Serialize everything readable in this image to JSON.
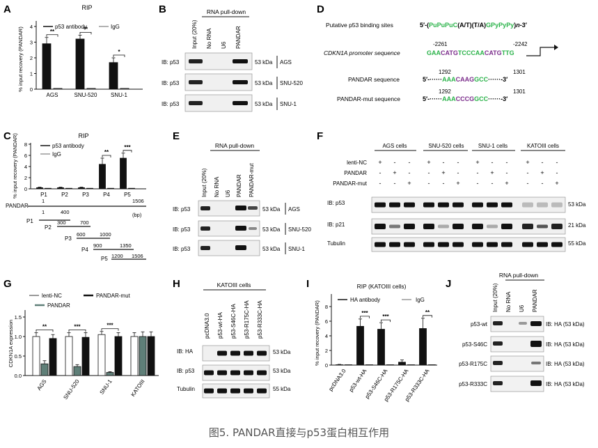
{
  "caption": "图5. PANDAR直接与p53蛋白相互作用",
  "colors": {
    "black": "#111111",
    "gray": "#999999",
    "teal": "#5f7f78",
    "white": "#ffffff",
    "green": "#2bb34a",
    "purple": "#7b2d8b"
  },
  "panelA": {
    "letter": "A",
    "title": "RIP",
    "legend": [
      "p53 antibody",
      "IgG"
    ],
    "ylabel": "% input recovery (PANDAR)",
    "ticks": [
      "0",
      "1",
      "2",
      "3",
      "4"
    ],
    "sig": [
      "**",
      "**",
      "*"
    ]
  },
  "panelB": {
    "letter": "B",
    "header": "RNA pull-down",
    "lanes": [
      "Input (20%)",
      "No RNA",
      "U6",
      "PANDAR"
    ],
    "rows": [
      {
        "label": "IB: p53",
        "kda": "53 kDa",
        "cell": "AGS"
      },
      {
        "label": "IB: p53",
        "kda": "53 kDa",
        "cell": "SNU-520"
      },
      {
        "label": "IB: p53",
        "kda": "53 kDa",
        "cell": "SNU-1"
      }
    ]
  },
  "panelC": {
    "letter": "C",
    "title": "RIP",
    "legend": [
      "p53 antibody",
      "IgG"
    ],
    "ylabel": "% input recovery (PANDAR)",
    "ticks": [
      "0",
      "2",
      "4",
      "6",
      "8"
    ],
    "sig": [
      "**",
      "***"
    ],
    "map_label": "PANDAR",
    "map_start": "1",
    "map_end": "1506",
    "unit": "(bp)",
    "fragments": [
      {
        "name": "P1",
        "s": "1",
        "e": "400"
      },
      {
        "name": "P2",
        "s": "300",
        "e": "700"
      },
      {
        "name": "P3",
        "s": "600",
        "e": "1000"
      },
      {
        "name": "P4",
        "s": "900",
        "e": "1350"
      },
      {
        "name": "P5",
        "s": "1200",
        "e": "1506"
      }
    ]
  },
  "panelD": {
    "letter": "D",
    "site_label": "Putative p53 binding sites",
    "promoter_label": "CDKN1A promoter sequence",
    "pandar_label": "PANDAR sequence",
    "mut_label": "PANDAR-mut sequence",
    "pos_promoter": [
      "-2261",
      "-2242"
    ],
    "pos_pandar": [
      "1292",
      "1301"
    ],
    "pos_mut": [
      "1292",
      "1301"
    ]
  },
  "panelE": {
    "letter": "E",
    "header": "RNA pull-down",
    "lanes": [
      "Input (20%)",
      "No RNA",
      "U6",
      "PANDAR",
      "PANDAR-mut"
    ],
    "rows": [
      {
        "label": "IB: p53",
        "kda": "53 kDa",
        "cell": "AGS"
      },
      {
        "label": "IB: p53",
        "kda": "53 kDa",
        "cell": "SNU-520"
      },
      {
        "label": "IB: p53",
        "kda": "53 kDa",
        "cell": "SNU-1"
      }
    ]
  },
  "panelF": {
    "letter": "F",
    "groups": [
      "AGS cells",
      "SNU-520 cells",
      "SNU-1 cells",
      "KATOIII cells"
    ],
    "conds": [
      "lenti-NC",
      "PANDAR",
      "PANDAR-mut"
    ],
    "rows": [
      {
        "label": "IB: p53",
        "kda": "53 kDa"
      },
      {
        "label": "IB: p21",
        "kda": "21 kDa"
      },
      {
        "label": "Tubulin",
        "kda": "55 kDa"
      }
    ]
  },
  "panelG": {
    "letter": "G",
    "legend": [
      "lenti-NC",
      "PANDAR-mut",
      "PANDAR"
    ],
    "ylabel": "CDKN1A expression",
    "ticks": [
      "0.0",
      "0.5",
      "1.0",
      "1.5"
    ],
    "sig": [
      "**",
      "***",
      "***"
    ]
  },
  "panelH": {
    "letter": "H",
    "header": "KATOIII cells",
    "lanes": [
      "pcDNA3.0",
      "p53-wt-HA",
      "p53-S46C-HA",
      "p53-R175C-HA",
      "p53-R333C-HA"
    ],
    "rows": [
      {
        "label": "IB: HA",
        "kda": "53 kDa"
      },
      {
        "label": "IB: p53",
        "kda": "53 kDa"
      },
      {
        "label": "Tubulin",
        "kda": "55 kDa"
      }
    ]
  },
  "panelI": {
    "letter": "I",
    "title": "RIP (KATOIII cells)",
    "legend": [
      "HA antibody",
      "IgG"
    ],
    "ylabel": "% input recovery (PANDAR)",
    "ticks": [
      "0",
      "2",
      "4",
      "6",
      "8"
    ],
    "sig": [
      "***",
      "***",
      "**"
    ]
  },
  "panelJ": {
    "letter": "J",
    "header": "RNA pull-down",
    "lanes": [
      "Input (20%)",
      "No RNA",
      "U6",
      "PANDAR"
    ],
    "rows": [
      {
        "label": "p53-wt",
        "ib": "IB: HA (53 kDa)"
      },
      {
        "label": "p53-S46C",
        "ib": "IB: HA (53 kDa)"
      },
      {
        "label": "p53-R175C",
        "ib": "IB: HA (53 kDa)"
      },
      {
        "label": "p53-R333C",
        "ib": "IB: HA (53 kDa)"
      }
    ]
  },
  "chart_data": [
    {
      "panel": "A",
      "type": "bar",
      "title": "RIP",
      "categories": [
        "AGS",
        "SNU-520",
        "SNU-1"
      ],
      "series": [
        {
          "name": "p53 antibody",
          "values": [
            2.9,
            3.2,
            1.7
          ],
          "errors": [
            0.4,
            0.25,
            0.3
          ],
          "color": "#111111"
        },
        {
          "name": "IgG",
          "values": [
            0.05,
            0.05,
            0.05
          ],
          "color": "#999999"
        }
      ],
      "ylabel": "% input recovery (PANDAR)",
      "ylim": [
        0,
        4
      ]
    },
    {
      "panel": "C",
      "type": "bar",
      "title": "RIP",
      "categories": [
        "P1",
        "P2",
        "P3",
        "P4",
        "P5"
      ],
      "series": [
        {
          "name": "p53 antibody",
          "values": [
            0.2,
            0.2,
            0.2,
            4.4,
            5.5
          ],
          "errors": [
            0.1,
            0.1,
            0.1,
            1.1,
            0.9
          ],
          "color": "#111111"
        },
        {
          "name": "IgG",
          "values": [
            0.1,
            0.1,
            0.1,
            0.1,
            0.1
          ],
          "color": "#999999"
        }
      ],
      "ylabel": "% input recovery (PANDAR)",
      "ylim": [
        0,
        8
      ]
    },
    {
      "panel": "G",
      "type": "bar",
      "categories": [
        "AGS",
        "SNU-520",
        "SNU-1",
        "KATOIII"
      ],
      "series": [
        {
          "name": "lenti-NC",
          "values": [
            1.0,
            1.0,
            1.05,
            1.0
          ],
          "errors": [
            0.1,
            0.1,
            0.08,
            0.1
          ],
          "color": "#ffffff"
        },
        {
          "name": "PANDAR",
          "values": [
            0.3,
            0.23,
            0.08,
            1.0
          ],
          "errors": [
            0.08,
            0.05,
            0.02,
            0.12
          ],
          "color": "#5f7f78"
        },
        {
          "name": "PANDAR-mut",
          "values": [
            0.95,
            0.98,
            1.0,
            1.0
          ],
          "errors": [
            0.1,
            0.12,
            0.1,
            0.12
          ],
          "color": "#111111"
        }
      ],
      "ylabel": "CDKN1A expression",
      "ylim": [
        0,
        1.5
      ]
    },
    {
      "panel": "I",
      "type": "bar",
      "title": "RIP (KATOIII cells)",
      "categories": [
        "pcDNA3.0",
        "p53-wt-HA",
        "p53-S46C-HA",
        "p53-R175C-HA",
        "p53-R333C-HA"
      ],
      "series": [
        {
          "name": "HA antibody",
          "values": [
            0.05,
            5.3,
            4.9,
            0.4,
            5.0
          ],
          "errors": [
            0.05,
            1.0,
            0.9,
            0.3,
            1.4
          ],
          "color": "#111111"
        },
        {
          "name": "IgG",
          "values": [
            0.05,
            0.05,
            0.05,
            0.05,
            0.05
          ],
          "color": "#999999"
        }
      ],
      "ylabel": "% input recovery (PANDAR)",
      "ylim": [
        0,
        8
      ]
    }
  ]
}
